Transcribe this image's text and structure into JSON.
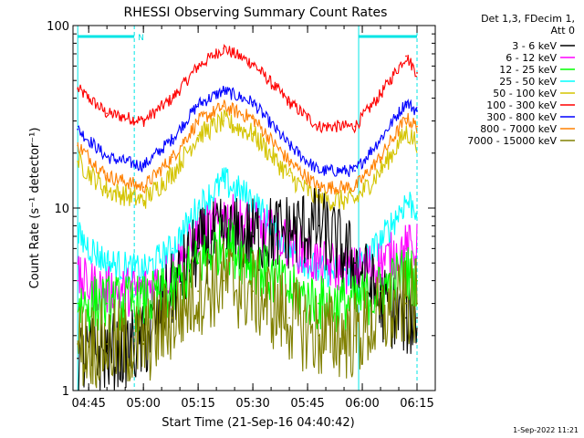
{
  "chart_data": {
    "type": "line",
    "title": "RHESSI Observing Summary Count Rates",
    "xlabel": "Start Time (21-Sep-16 04:40:42)",
    "ylabel": "Count Rate (s⁻¹ detector⁻¹)",
    "x_range": [
      "04:40:42",
      "06:20:00"
    ],
    "x_ticks": [
      "04:45",
      "05:00",
      "05:15",
      "05:30",
      "05:45",
      "06:00",
      "06:15"
    ],
    "y_scale": "log",
    "ylim": [
      1,
      100
    ],
    "y_ticks": [
      "1",
      "10",
      "100"
    ],
    "legend_header": [
      "Det 1,3, FDecim 1,",
      "Att 0"
    ],
    "legend_position": "right",
    "flag_label": "N",
    "flag_color": "#00e5e5",
    "timestamp": "1-Sep-2022 11:21",
    "bands": [
      {
        "name": "3 - 6 keV",
        "color": "#000000"
      },
      {
        "name": "6 - 12 keV",
        "color": "#ff00ff"
      },
      {
        "name": "12 - 25 keV",
        "color": "#00ff00"
      },
      {
        "name": "25 - 50 keV",
        "color": "#00ffff"
      },
      {
        "name": "50 - 100 keV",
        "color": "#d4c400"
      },
      {
        "name": "100 - 300 keV",
        "color": "#ff0000"
      },
      {
        "name": "300 - 800 keV",
        "color": "#0000ff"
      },
      {
        "name": "800 - 7000 keV",
        "color": "#ff8000"
      },
      {
        "name": "7000 - 15000 keV",
        "color": "#808000"
      }
    ],
    "series": [
      {
        "band": "100 - 300 keV",
        "color": "#ff0000",
        "times": [
          "04:42",
          "04:50",
          "05:00",
          "05:08",
          "05:15",
          "05:22",
          "05:30",
          "05:40",
          "05:48",
          "05:58",
          "06:05",
          "06:12",
          "06:15"
        ],
        "values": [
          45,
          33,
          30,
          40,
          60,
          75,
          62,
          38,
          28,
          28,
          42,
          68,
          55
        ]
      },
      {
        "band": "300 - 800 keV",
        "color": "#0000ff",
        "times": [
          "04:42",
          "04:50",
          "05:00",
          "05:08",
          "05:15",
          "05:22",
          "05:30",
          "05:40",
          "05:48",
          "05:58",
          "06:05",
          "06:12",
          "06:15"
        ],
        "values": [
          27,
          19,
          17,
          24,
          37,
          44,
          38,
          22,
          16,
          16,
          24,
          38,
          34
        ]
      },
      {
        "band": "800 - 7000 keV",
        "color": "#ff8000",
        "times": [
          "04:42",
          "04:50",
          "05:00",
          "05:08",
          "05:15",
          "05:22",
          "05:30",
          "05:40",
          "05:48",
          "05:58",
          "06:05",
          "06:12",
          "06:15"
        ],
        "values": [
          22,
          15,
          13,
          19,
          30,
          36,
          31,
          18,
          13,
          13,
          19,
          31,
          28
        ]
      },
      {
        "band": "50 - 100 keV",
        "color": "#d4c400",
        "times": [
          "04:42",
          "04:50",
          "05:00",
          "05:08",
          "05:15",
          "05:22",
          "05:30",
          "05:40",
          "05:48",
          "05:58",
          "06:05",
          "06:12",
          "06:15"
        ],
        "values": [
          18,
          12.5,
          11,
          15.5,
          25,
          30,
          25.5,
          15,
          11,
          11,
          16,
          26,
          23
        ]
      },
      {
        "band": "25 - 50 keV",
        "color": "#00ffff",
        "times": [
          "04:42",
          "04:50",
          "05:00",
          "05:08",
          "05:15",
          "05:22",
          "05:30",
          "05:40",
          "05:48",
          "05:58",
          "06:05",
          "06:12",
          "06:15"
        ],
        "values": [
          7,
          5,
          4.5,
          6,
          10,
          14,
          11,
          6,
          4.5,
          4.5,
          6.5,
          11,
          10
        ]
      },
      {
        "band": "6 - 12 keV",
        "color": "#ff00ff",
        "times": [
          "04:42",
          "04:50",
          "05:00",
          "05:08",
          "05:15",
          "05:22",
          "05:30",
          "05:40",
          "05:48",
          "05:58",
          "06:05",
          "06:12",
          "06:15"
        ],
        "values": [
          4,
          3.5,
          3.5,
          4.5,
          7,
          9,
          8,
          6.5,
          5,
          4.5,
          5,
          6,
          6
        ]
      },
      {
        "band": "3 - 6 keV",
        "color": "#000000",
        "times": [
          "04:42",
          "04:50",
          "05:00",
          "05:08",
          "05:15",
          "05:22",
          "05:30",
          "05:40",
          "05:48",
          "05:58",
          "06:05",
          "06:12",
          "06:15"
        ],
        "values": [
          1.5,
          1.6,
          1.8,
          3.5,
          6,
          7,
          7,
          7.5,
          8,
          5,
          3,
          2.5,
          2.5
        ]
      },
      {
        "band": "12 - 25 keV",
        "color": "#00ff00",
        "times": [
          "04:42",
          "04:50",
          "05:00",
          "05:08",
          "05:15",
          "05:22",
          "05:30",
          "05:40",
          "05:48",
          "05:58",
          "06:05",
          "06:12",
          "06:15"
        ],
        "values": [
          3,
          3,
          3,
          3.5,
          5,
          6.5,
          5,
          3.5,
          3,
          3,
          3.5,
          4.5,
          4
        ]
      },
      {
        "band": "7000 - 15000 keV",
        "color": "#808000",
        "times": [
          "04:42",
          "04:50",
          "05:00",
          "05:08",
          "05:15",
          "05:22",
          "05:30",
          "05:40",
          "05:48",
          "05:58",
          "06:05",
          "06:12",
          "06:15"
        ],
        "values": [
          1.8,
          1.8,
          1.8,
          2.5,
          3.5,
          4,
          3.5,
          2.5,
          2,
          2,
          2.5,
          3,
          3
        ]
      }
    ]
  }
}
